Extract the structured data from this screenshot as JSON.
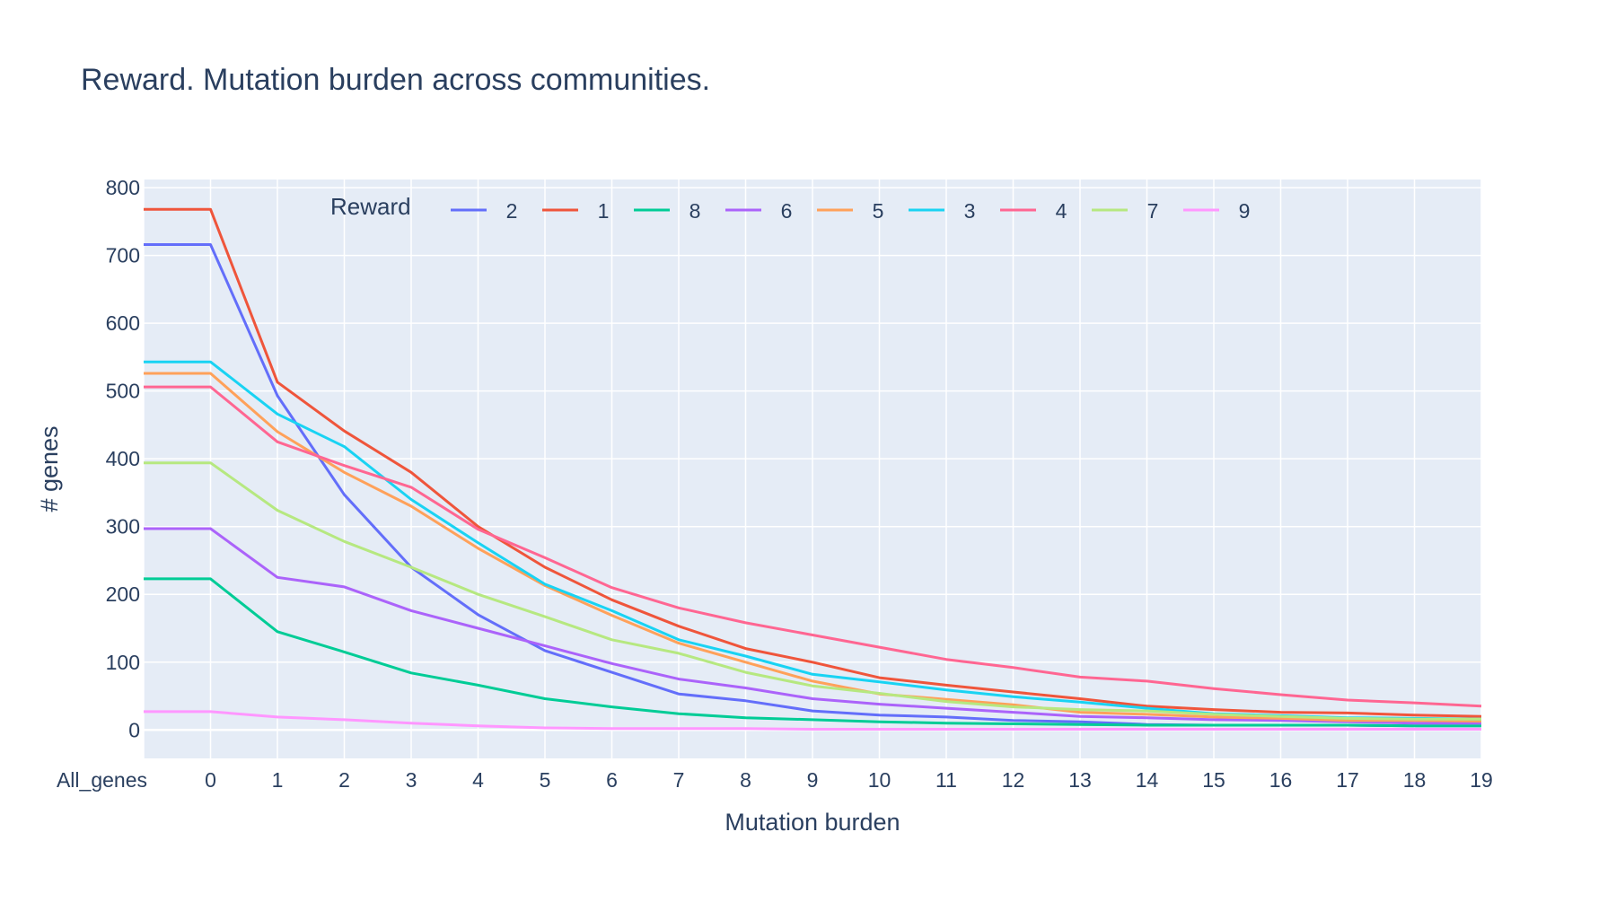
{
  "chart_data": {
    "type": "line",
    "title": "Reward. Mutation burden across communities.",
    "xlabel": "Mutation burden",
    "ylabel": "# genes",
    "legend_title": "Reward",
    "legend_placement": "top",
    "grid": true,
    "categories": [
      "All_genes",
      "0",
      "1",
      "2",
      "3",
      "4",
      "5",
      "6",
      "7",
      "8",
      "9",
      "10",
      "11",
      "12",
      "13",
      "14",
      "15",
      "16",
      "17",
      "18",
      "19"
    ],
    "ylim": [
      -42,
      812
    ],
    "yticks": [
      0,
      100,
      200,
      300,
      400,
      500,
      600,
      700,
      800
    ],
    "series": [
      {
        "name": "2",
        "color": "#636efa",
        "values": [
          716,
          716,
          493,
          347,
          240,
          170,
          117,
          85,
          53,
          43,
          28,
          22,
          19,
          14,
          12,
          8,
          7,
          7,
          7,
          6,
          6
        ]
      },
      {
        "name": "1",
        "color": "#ef553b",
        "values": [
          768,
          768,
          513,
          441,
          380,
          300,
          240,
          192,
          153,
          120,
          100,
          77,
          66,
          56,
          46,
          35,
          30,
          26,
          25,
          22,
          20
        ]
      },
      {
        "name": "8",
        "color": "#00cc96",
        "values": [
          223,
          223,
          145,
          115,
          84,
          66,
          46,
          34,
          24,
          18,
          15,
          12,
          10,
          9,
          8,
          7,
          7,
          7,
          7,
          6,
          6
        ]
      },
      {
        "name": "6",
        "color": "#ab63fa",
        "values": [
          297,
          297,
          225,
          211,
          176,
          150,
          124,
          98,
          75,
          62,
          46,
          38,
          32,
          26,
          20,
          18,
          15,
          14,
          12,
          10,
          10
        ]
      },
      {
        "name": "5",
        "color": "#ffa15a",
        "values": [
          526,
          526,
          440,
          380,
          330,
          268,
          213,
          169,
          128,
          100,
          72,
          53,
          45,
          37,
          26,
          23,
          19,
          17,
          14,
          14,
          13
        ]
      },
      {
        "name": "3",
        "color": "#19d3f3",
        "values": [
          543,
          543,
          466,
          418,
          340,
          276,
          215,
          176,
          133,
          109,
          82,
          71,
          59,
          49,
          41,
          32,
          24,
          21,
          18,
          17,
          16
        ]
      },
      {
        "name": "4",
        "color": "#ff6692",
        "values": [
          506,
          506,
          425,
          390,
          358,
          296,
          254,
          210,
          180,
          158,
          140,
          122,
          104,
          92,
          78,
          72,
          61,
          52,
          44,
          40,
          35
        ]
      },
      {
        "name": "7",
        "color": "#b6e880",
        "values": [
          394,
          394,
          324,
          278,
          240,
          200,
          167,
          133,
          113,
          85,
          65,
          54,
          42,
          34,
          30,
          28,
          23,
          20,
          17,
          16,
          16
        ]
      },
      {
        "name": "9",
        "color": "#ff97ff",
        "values": [
          27,
          27,
          19,
          15,
          10,
          6,
          3,
          2,
          2,
          2,
          1,
          1,
          1,
          1,
          1,
          1,
          1,
          1,
          1,
          1,
          1
        ]
      }
    ]
  }
}
